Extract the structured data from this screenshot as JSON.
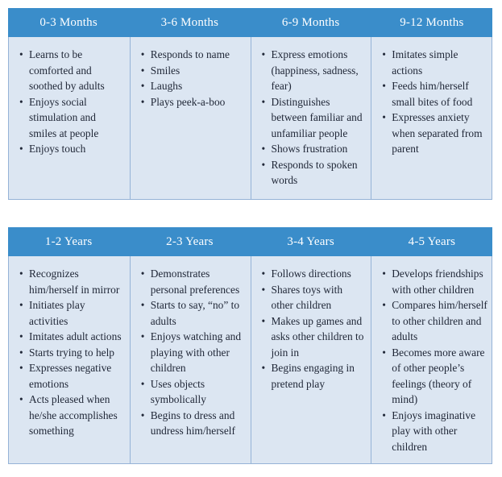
{
  "colors": {
    "header_bg": "#3a8dca",
    "header_text": "#ffffff",
    "body_bg": "#dce6f2",
    "border": "#95b3d7",
    "text": "#212838",
    "page_bg": "#ffffff"
  },
  "tables": [
    {
      "name": "social-emotional-milestones-months",
      "columns": [
        {
          "header": "0-3 Months",
          "items": [
            "Learns to be comforted and soothed by adults",
            "Enjoys social stimulation and smiles at people",
            "Enjoys touch"
          ]
        },
        {
          "header": "3-6 Months",
          "items": [
            "Responds to name",
            "Smiles",
            "Laughs",
            "Plays peek-a-boo"
          ]
        },
        {
          "header": "6-9 Months",
          "items": [
            "Express emotions (happiness, sadness, fear)",
            "Distinguishes between familiar and unfamiliar people",
            "Shows frustration",
            "Responds to spoken words"
          ]
        },
        {
          "header": "9-12 Months",
          "items": [
            "Imitates simple actions",
            "Feeds him/herself small bites of food",
            "Expresses anxiety when separated from parent"
          ]
        }
      ]
    },
    {
      "name": "social-emotional-milestones-years",
      "columns": [
        {
          "header": "1-2 Years",
          "items": [
            "Recognizes him/herself in mirror",
            "Initiates play activities",
            "Imitates adult actions",
            "Starts trying to help",
            "Expresses negative emotions",
            "Acts pleased when he/she accomplishes something"
          ]
        },
        {
          "header": "2-3 Years",
          "items": [
            "Demonstrates personal preferences",
            "Starts to say, “no” to adults",
            "Enjoys watching and playing with other children",
            "Uses objects symbolically",
            "Begins to dress and undress him/herself"
          ]
        },
        {
          "header": "3-4 Years",
          "items": [
            "Follows directions",
            "Shares toys with other children",
            "Makes up games and asks other children to join in",
            "Begins engaging in pretend play"
          ]
        },
        {
          "header": "4-5 Years",
          "items": [
            "Develops friendships with other children",
            "Compares him/herself to other children and adults",
            "Becomes more aware of other people’s feelings (theory of mind)",
            "Enjoys imaginative play with other children"
          ]
        }
      ]
    }
  ]
}
